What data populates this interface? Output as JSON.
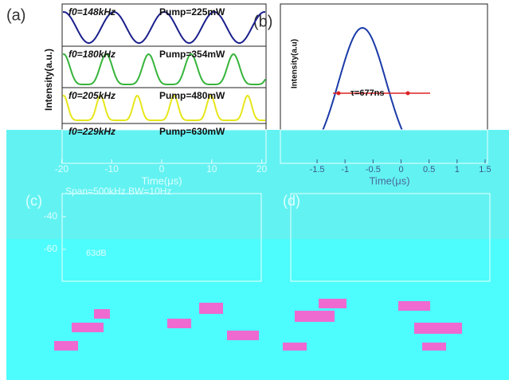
{
  "chart_data": [
    {
      "type": "line",
      "panel_label": "(a)",
      "ylabel": "Intensity(a.u.)",
      "xlabel": "Time(μs)",
      "xticks": [
        -20,
        -10,
        0,
        10,
        20
      ],
      "annotations": [
        {
          "freq": "f0=148kHz",
          "pump": "Pump=225mW",
          "color": "#1a1f8c"
        },
        {
          "freq": "f0=180kHz",
          "pump": "Pump=354mW",
          "color": "#35b43a"
        },
        {
          "freq": "f0=205kHz",
          "pump": "Pump=480mW",
          "color": "#e6e61a"
        },
        {
          "freq": "f0=229kHz",
          "pump": "Pump=630mW",
          "color": "#c01818"
        }
      ]
    },
    {
      "type": "line",
      "panel_label": "(b)",
      "ylabel": "Intensity(a.u)",
      "xlabel": "Time(μs)",
      "xticks": [
        -1.5,
        -1.0,
        -0.5,
        0.0,
        0.5,
        1.0,
        1.5
      ],
      "annotation": "τ=677ns",
      "color": "#1a3aa8"
    },
    {
      "type": "line",
      "panel_label": "(c)",
      "annotation": "Span=500kHz  BW=10Hz",
      "yticks": [
        -40,
        -60
      ],
      "snr": "63dB"
    },
    {
      "type": "line",
      "panel_label": "(d)"
    }
  ]
}
